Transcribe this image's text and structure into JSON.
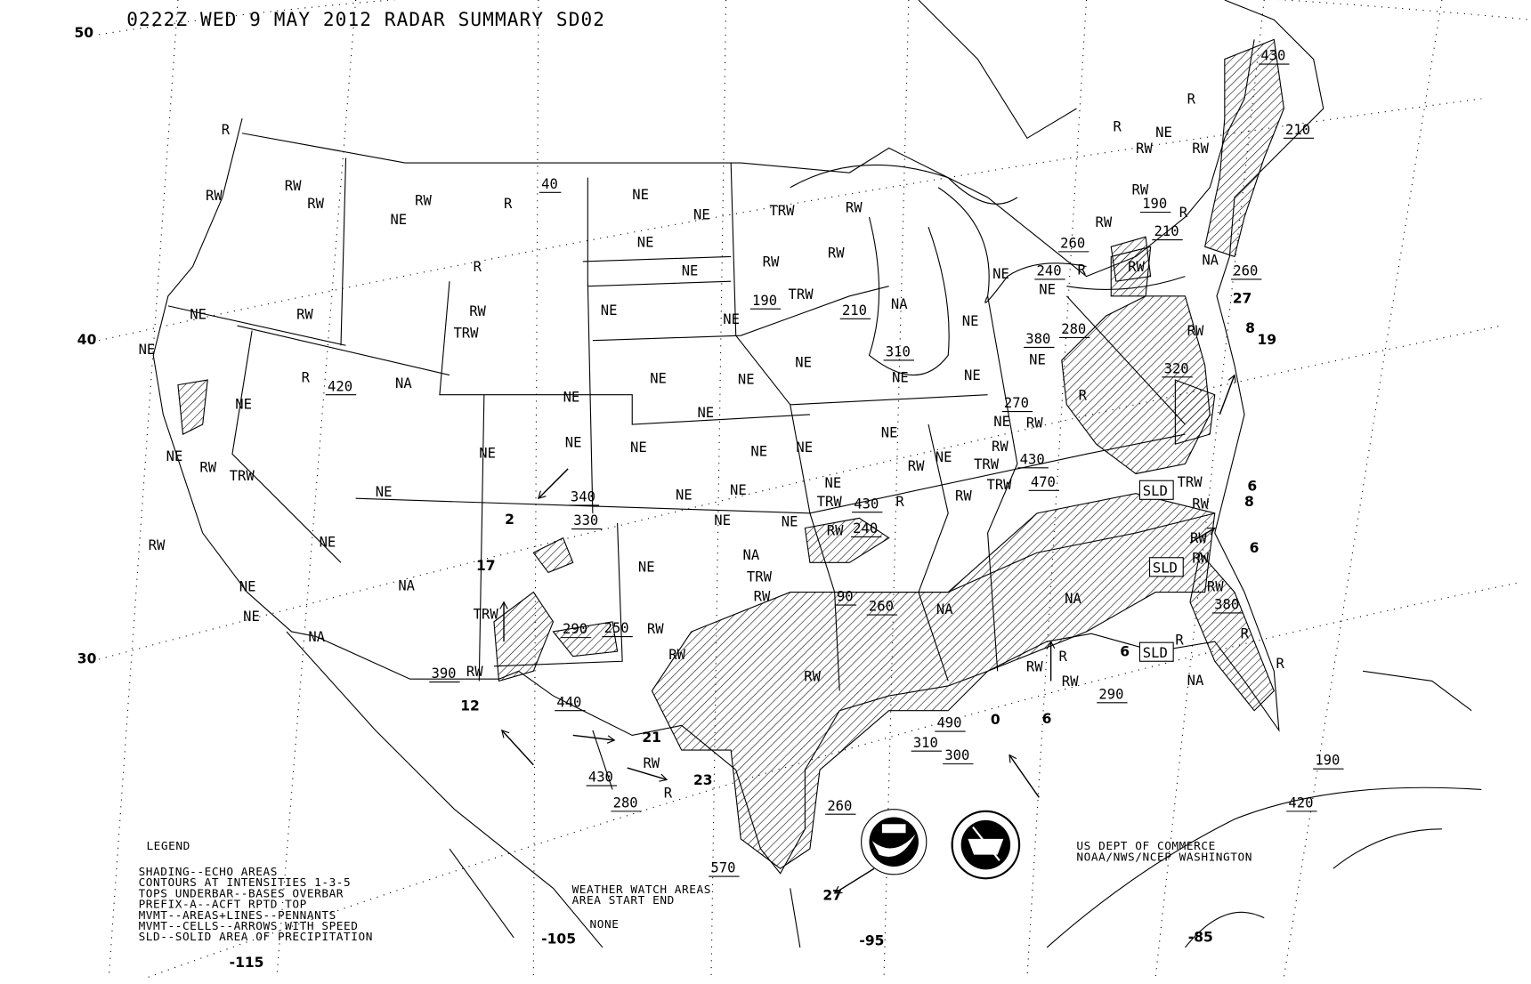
{
  "title": "0222Z WED  9 MAY 2012 RADAR SUMMARY SD02",
  "latitudes": [
    "50",
    "40",
    "30"
  ],
  "longitudes": [
    "-115",
    "-105",
    "-95",
    "-85"
  ],
  "legend": {
    "heading": "LEGEND",
    "lines": [
      "SHADING--ECHO AREAS",
      "CONTOURS AT INTENSITIES 1-3-5",
      "TOPS UNDERBAR--BASES OVERBAR",
      "PREFIX-A--ACFT RPTD TOP",
      "MVMT--AREAS+LINES--PENNANTS",
      "MVMT--CELLS--ARROWS WITH SPEED",
      "SLD--SOLID AREA OF PRECIPITATION"
    ]
  },
  "watch": {
    "line1": "WEATHER WATCH AREAS",
    "line2": "AREA   START  END",
    "status": "NONE"
  },
  "credit": {
    "line1": "US DEPT OF COMMERCE",
    "line2": "NOAA/NWS/NCEP WASHINGTON"
  },
  "logos": [
    "NOAA",
    "NATIONAL WEATHER SERVICE"
  ],
  "no_echo_label": "NE",
  "not_available_label": "NA",
  "precip_labels": [
    "RW",
    "RW",
    "RW",
    "R",
    "RW",
    "R",
    "R",
    "RW",
    "TRW",
    "R",
    "RW",
    "RW",
    "TRW",
    "RW",
    "R",
    "RW",
    "RW",
    "RW",
    "R",
    "TRW",
    "RW",
    "RW",
    "RW",
    "TRW",
    "RW",
    "RW",
    "TRW",
    "TRW",
    "RW",
    "RW",
    "RW",
    "R",
    "R",
    "R",
    "RW",
    "RW",
    "TRW",
    "RW",
    "R",
    "RW",
    "TRW",
    "RW",
    "RW",
    "TRW",
    "RW",
    "RW",
    "RW",
    "R",
    "RW",
    "R",
    "RW",
    "TRW",
    "RW",
    "RW",
    "RW",
    "R",
    "R",
    "R",
    "RW"
  ],
  "tops": [
    "40",
    "190",
    "210",
    "310",
    "420",
    "190",
    "210",
    "260",
    "240",
    "280",
    "380",
    "320",
    "270",
    "430",
    "470",
    "340",
    "330",
    "430",
    "240",
    "290",
    "250",
    "90",
    "260",
    "390",
    "440",
    "430",
    "280",
    "310",
    "490",
    "300",
    "260",
    "570",
    "290",
    "380",
    "190",
    "420",
    "210",
    "430",
    "260"
  ],
  "speeds": [
    "2",
    "17",
    "12",
    "21",
    "23",
    "27",
    "0",
    "6",
    "6",
    "6",
    "8",
    "6",
    "8",
    "19",
    "27"
  ],
  "solid_label": "SLD",
  "colors": {
    "ink": "#000000",
    "background": "#ffffff"
  }
}
